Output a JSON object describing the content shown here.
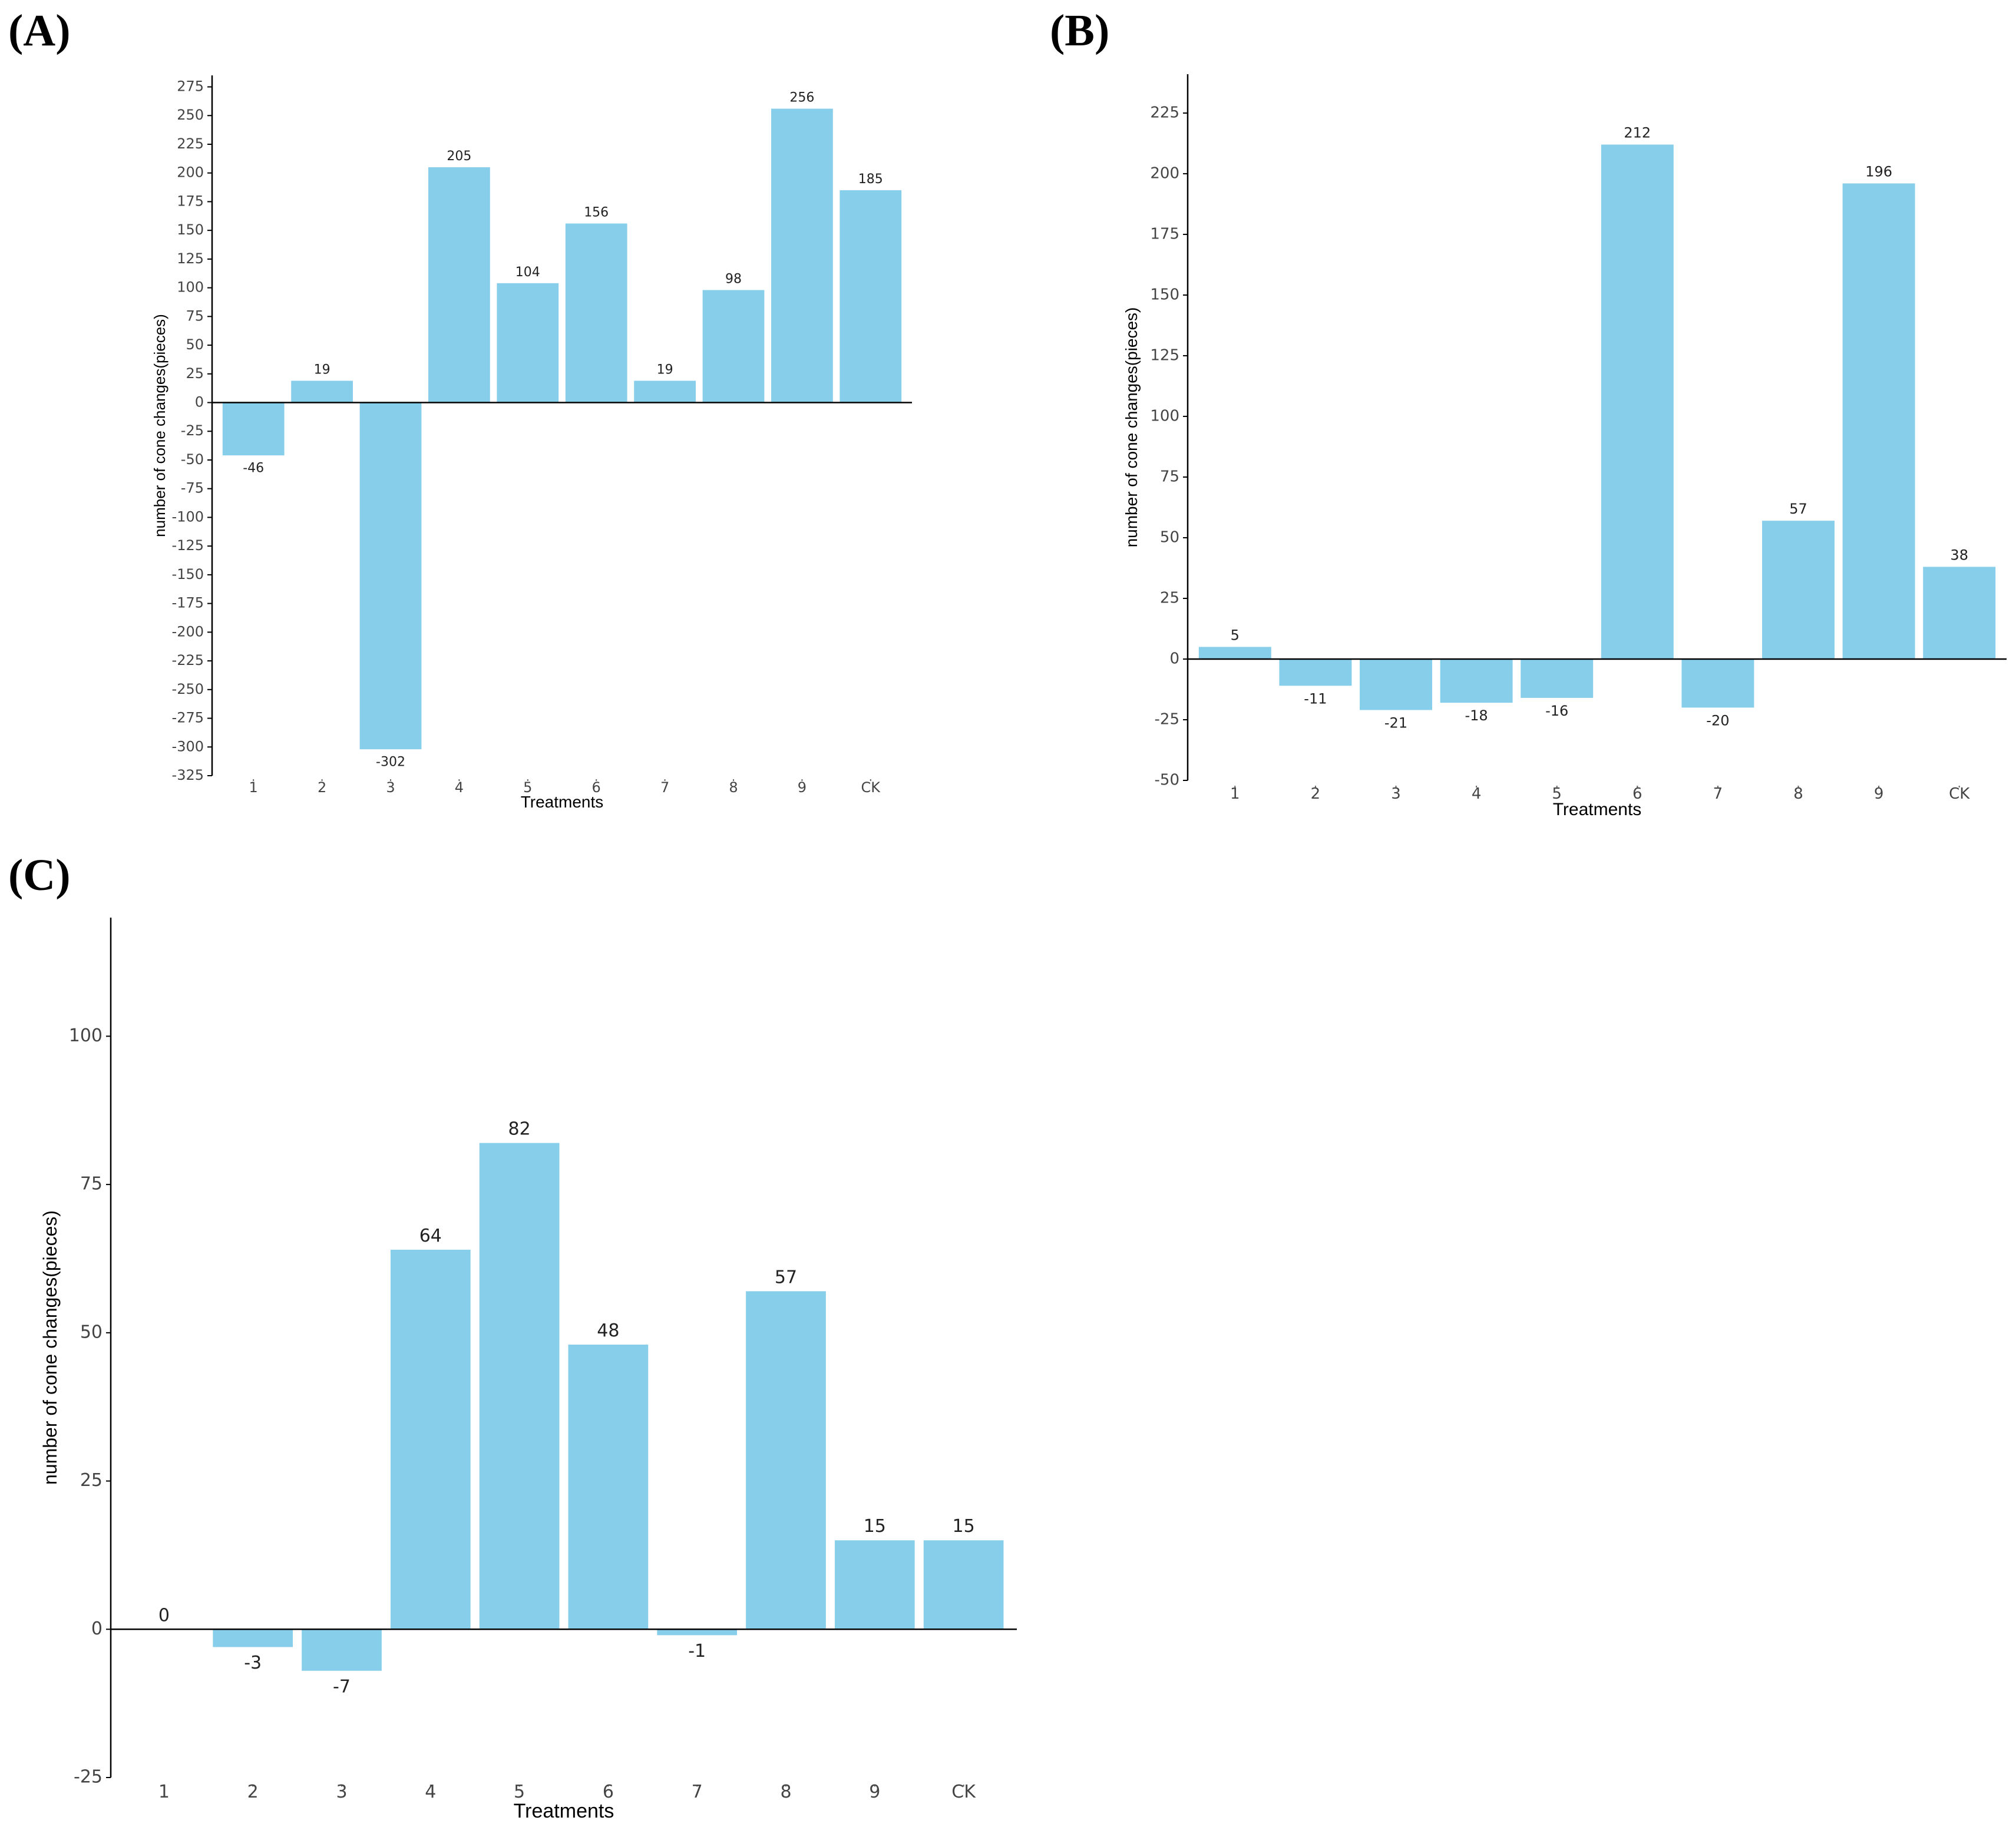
{
  "colors": {
    "bar": "#87CEEB",
    "axis": "#000000",
    "text": "#222222"
  },
  "chart_data": [
    {
      "panel_label": "(A)",
      "type": "bar",
      "xlabel": "Treatments",
      "ylabel": "number of cone changes(pieces)",
      "categories": [
        "1",
        "2",
        "3",
        "4",
        "5",
        "6",
        "7",
        "8",
        "9",
        "CK"
      ],
      "values": [
        -46,
        19,
        -302,
        205,
        104,
        156,
        19,
        98,
        256,
        185
      ],
      "value_labels": [
        "-46",
        "19",
        "-302",
        "205",
        "104",
        "156",
        "19",
        "98",
        "256",
        "185"
      ],
      "ylim": [
        -325,
        285
      ],
      "yticks": [
        -325,
        -300,
        -275,
        -250,
        -225,
        -200,
        -175,
        -150,
        -125,
        -100,
        -75,
        -50,
        -25,
        0,
        25,
        50,
        75,
        100,
        125,
        150,
        175,
        200,
        225,
        250,
        275
      ],
      "grid": false
    },
    {
      "panel_label": "(B)",
      "type": "bar",
      "xlabel": "Treatments",
      "ylabel": "number of cone changes(pieces)",
      "categories": [
        "1",
        "2",
        "3",
        "4",
        "5",
        "6",
        "7",
        "8",
        "9",
        "CK"
      ],
      "values": [
        5,
        -11,
        -21,
        -18,
        -16,
        212,
        -20,
        57,
        196,
        38
      ],
      "value_labels": [
        "5",
        "-11",
        "-21",
        "-18",
        "-16",
        "212",
        "-20",
        "57",
        "196",
        "38"
      ],
      "ylim": [
        -50,
        241
      ],
      "yticks": [
        -50,
        -25,
        0,
        25,
        50,
        75,
        100,
        125,
        150,
        175,
        200,
        225
      ],
      "grid": false
    },
    {
      "panel_label": "(C)",
      "type": "bar",
      "xlabel": "Treatments",
      "ylabel": "number of cone changes(pieces)",
      "categories": [
        "1",
        "2",
        "3",
        "4",
        "5",
        "6",
        "7",
        "8",
        "9",
        "CK"
      ],
      "values": [
        0,
        -3,
        -7,
        64,
        82,
        48,
        -1,
        57,
        15,
        15
      ],
      "value_labels": [
        "0",
        "-3",
        "-7",
        "64",
        "82",
        "48",
        "-1",
        "57",
        "15",
        "15"
      ],
      "ylim": [
        -25,
        120
      ],
      "yticks": [
        -25,
        0,
        25,
        50,
        75,
        100
      ],
      "grid": false
    }
  ]
}
